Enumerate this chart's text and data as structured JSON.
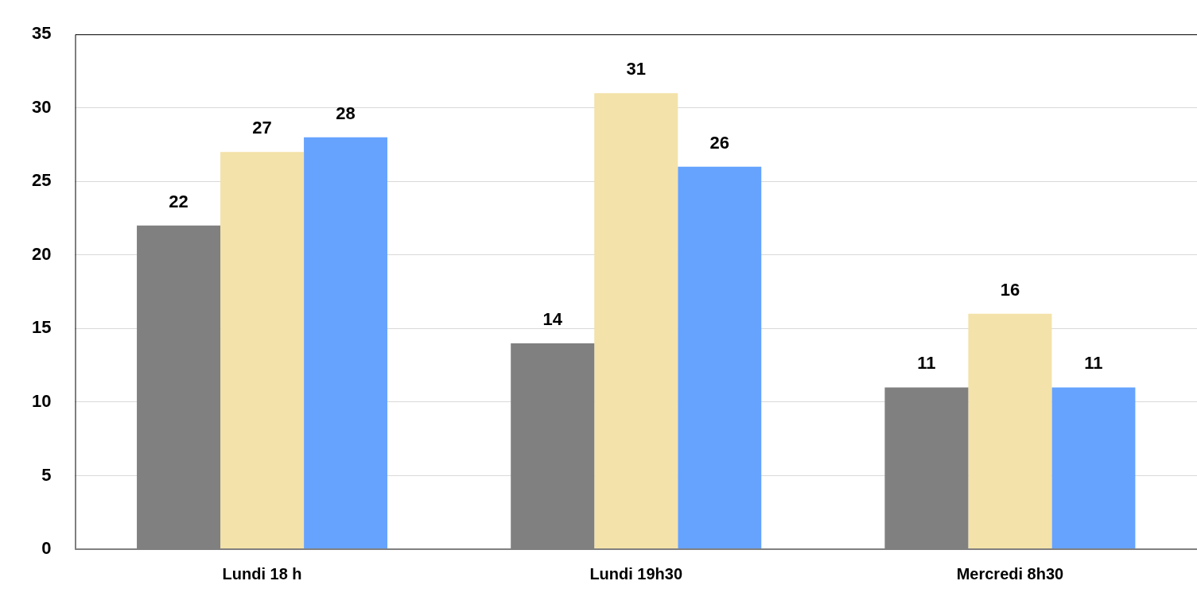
{
  "chart_data": {
    "type": "bar",
    "categories": [
      "Lundi 18 h",
      "Lundi 19h30",
      "Mercredi 8h30"
    ],
    "series": [
      {
        "color": "#808080",
        "values": [
          22,
          14,
          11
        ]
      },
      {
        "color": "#f3e2a9",
        "values": [
          27,
          31,
          16
        ]
      },
      {
        "color": "#66a3ff",
        "values": [
          28,
          26,
          11
        ]
      }
    ],
    "ylim": [
      0,
      35
    ],
    "yticks": [
      0,
      5,
      10,
      15,
      20,
      25,
      30,
      35
    ],
    "grid": "y",
    "data_labels": true,
    "legend": false
  }
}
